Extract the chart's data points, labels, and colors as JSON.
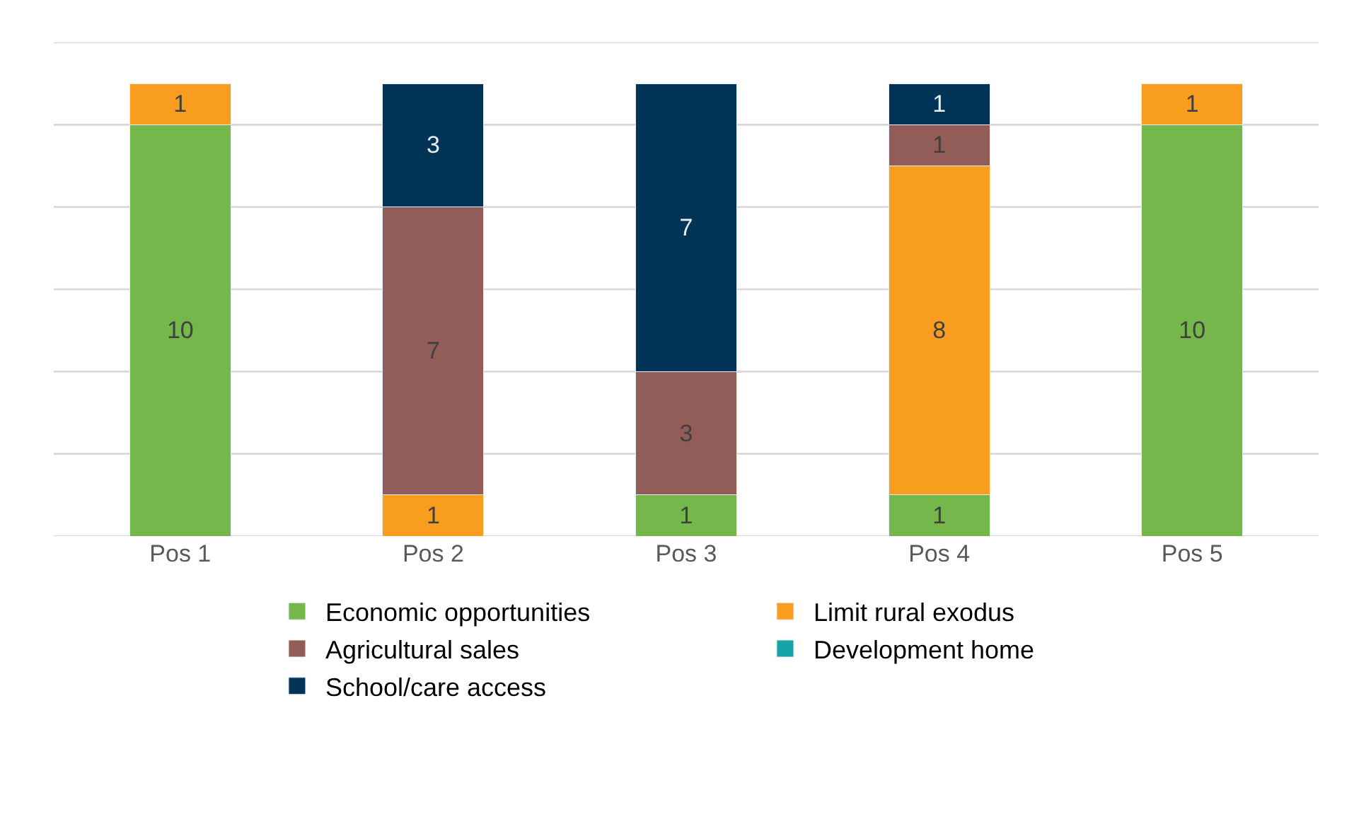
{
  "chart_data": {
    "type": "bar",
    "stacked": true,
    "categories": [
      "Pos 1",
      "Pos 2",
      "Pos 3",
      "Pos 4",
      "Pos 5"
    ],
    "series": [
      {
        "name": "Economic opportunities",
        "color": "#76b74b",
        "values": [
          10,
          null,
          1,
          1,
          10
        ]
      },
      {
        "name": "Limit rural exodus",
        "color": "#f89d1e",
        "values": [
          1,
          1,
          null,
          8,
          1
        ]
      },
      {
        "name": "Agricultural sales",
        "color": "#925c58",
        "values": [
          null,
          7,
          3,
          1,
          null
        ]
      },
      {
        "name": "Development home",
        "color": "#17a2a8",
        "values": [
          null,
          null,
          null,
          null,
          null
        ]
      },
      {
        "name": "School/care access",
        "color": "#013457",
        "values": [
          null,
          3,
          7,
          1,
          null
        ]
      }
    ],
    "ylim": [
      0,
      12
    ],
    "yticks": [
      {
        "value": 0,
        "label": null
      },
      {
        "value": 2,
        "label": null
      },
      {
        "value": 4,
        "label": null
      },
      {
        "value": 6,
        "label": null
      },
      {
        "value": 8,
        "label": null
      },
      {
        "value": 10,
        "label": null
      },
      {
        "value": 12,
        "label": null
      }
    ],
    "tick_labels": "x",
    "grid": "y",
    "data_labels": true,
    "legend": "bottom"
  }
}
